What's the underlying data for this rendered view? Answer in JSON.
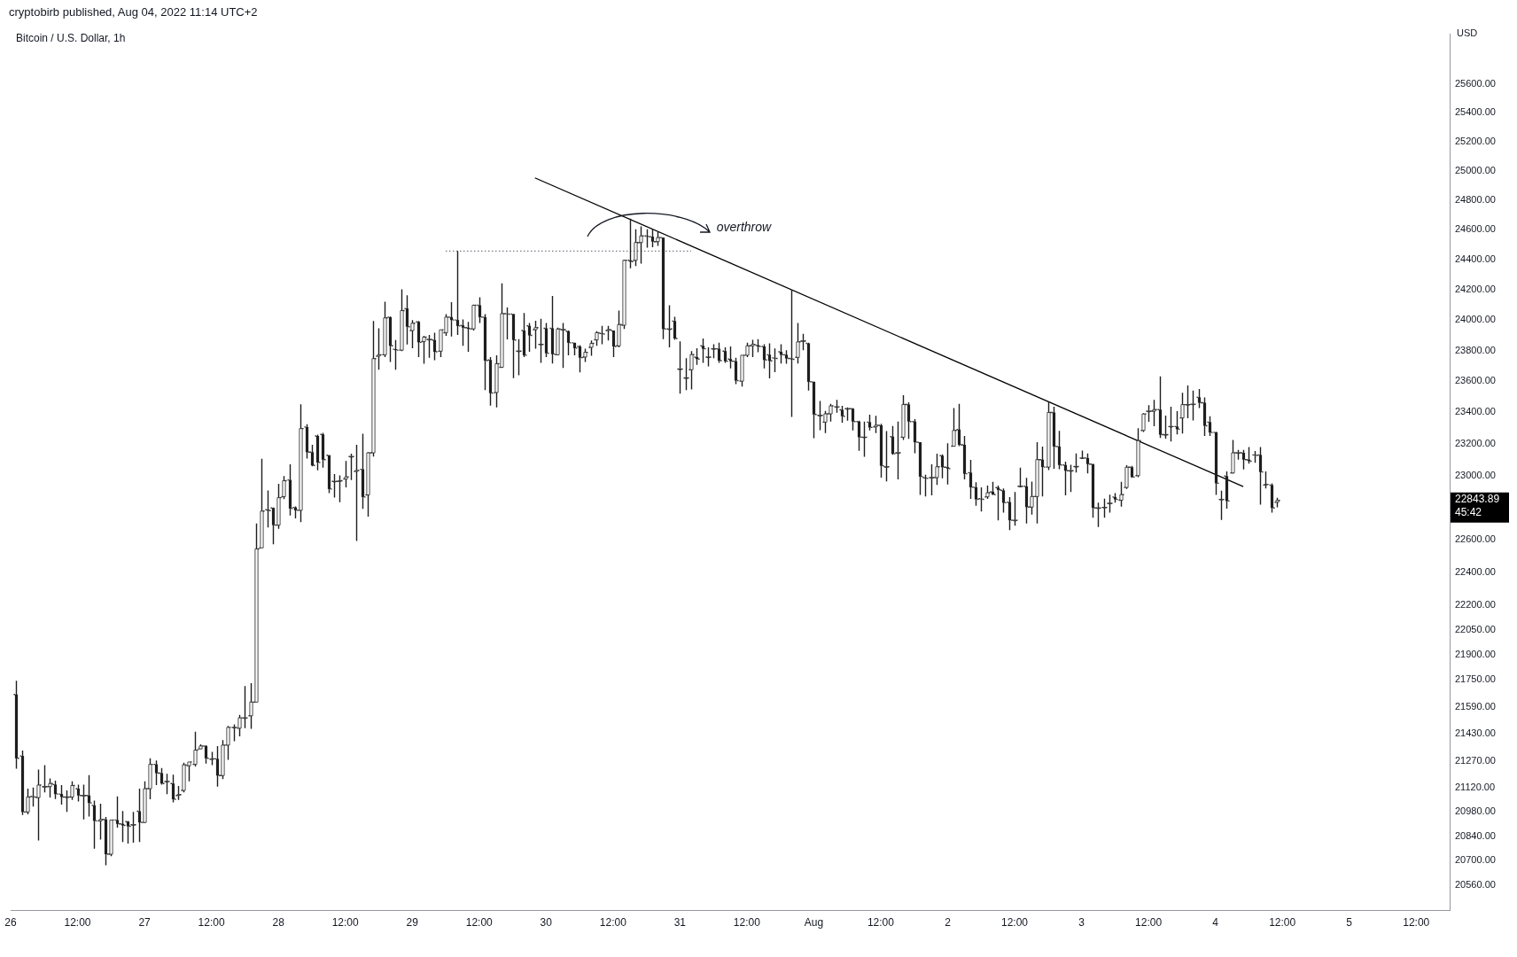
{
  "chart_data": {
    "type": "candlestick",
    "subtitle": "cryptobirb published, Aug 04, 2022 11:14 UTC+2",
    "title": "Bitcoin / U.S. Dollar, 1h",
    "ylabel": "USD",
    "color": "#1e1e1e",
    "log": "y",
    "xlim": [
      "2022-07-26T00:00",
      "2022-08-05T18:00"
    ],
    "xticks": [
      {
        "value": "2022-07-26T00:00",
        "label": "26"
      },
      {
        "value": "2022-07-26T12:00",
        "label": "12:00"
      },
      {
        "value": "2022-07-27T00:00",
        "label": "27"
      },
      {
        "value": "2022-07-27T12:00",
        "label": "12:00"
      },
      {
        "value": "2022-07-28T00:00",
        "label": "28"
      },
      {
        "value": "2022-07-28T12:00",
        "label": "12:00"
      },
      {
        "value": "2022-07-29T00:00",
        "label": "29"
      },
      {
        "value": "2022-07-29T12:00",
        "label": "12:00"
      },
      {
        "value": "2022-07-30T00:00",
        "label": "30"
      },
      {
        "value": "2022-07-30T12:00",
        "label": "12:00"
      },
      {
        "value": "2022-07-31T00:00",
        "label": "31"
      },
      {
        "value": "2022-07-31T12:00",
        "label": "12:00"
      },
      {
        "value": "2022-08-01T00:00",
        "label": "Aug"
      },
      {
        "value": "2022-08-01T12:00",
        "label": "12:00"
      },
      {
        "value": "2022-08-02T00:00",
        "label": "2"
      },
      {
        "value": "2022-08-02T12:00",
        "label": "12:00"
      },
      {
        "value": "2022-08-03T00:00",
        "label": "3"
      },
      {
        "value": "2022-08-03T12:00",
        "label": "12:00"
      },
      {
        "value": "2022-08-04T00:00",
        "label": "4"
      },
      {
        "value": "2022-08-04T12:00",
        "label": "12:00"
      },
      {
        "value": "2022-08-05T00:00",
        "label": "5"
      },
      {
        "value": "2022-08-05T12:00",
        "label": "12:00"
      }
    ],
    "ylim": [
      20420,
      25950
    ],
    "yticks": [
      {
        "value": 20560,
        "label": "20560.00"
      },
      {
        "value": 20700,
        "label": "20700.00"
      },
      {
        "value": 20840,
        "label": "20840.00"
      },
      {
        "value": 20980,
        "label": "20980.00"
      },
      {
        "value": 21120,
        "label": "21120.00"
      },
      {
        "value": 21270,
        "label": "21270.00"
      },
      {
        "value": 21430,
        "label": "21430.00"
      },
      {
        "value": 21590,
        "label": "21590.00"
      },
      {
        "value": 21750,
        "label": "21750.00"
      },
      {
        "value": 21900,
        "label": "21900.00"
      },
      {
        "value": 22050,
        "label": "22050.00"
      },
      {
        "value": 22200,
        "label": "22200.00"
      },
      {
        "value": 22400,
        "label": "22400.00"
      },
      {
        "value": 22600,
        "label": "22600.00"
      },
      {
        "value": 23000,
        "label": "23000.00"
      },
      {
        "value": 23200,
        "label": "23200.00"
      },
      {
        "value": 23400,
        "label": "23400.00"
      },
      {
        "value": 23600,
        "label": "23600.00"
      },
      {
        "value": 23800,
        "label": "23800.00"
      },
      {
        "value": 24000,
        "label": "24000.00"
      },
      {
        "value": 24200,
        "label": "24200.00"
      },
      {
        "value": 24400,
        "label": "24400.00"
      },
      {
        "value": 24600,
        "label": "24600.00"
      },
      {
        "value": 24800,
        "label": "24800.00"
      },
      {
        "value": 25000,
        "label": "25000.00"
      },
      {
        "value": 25200,
        "label": "25200.00"
      },
      {
        "value": 25400,
        "label": "25400.00"
      },
      {
        "value": 25600,
        "label": "25600.00"
      }
    ],
    "x": [
      "2022-07-26T01:00",
      "2022-07-26T02:00",
      "2022-07-26T03:00",
      "2022-07-26T04:00",
      "2022-07-26T05:00",
      "2022-07-26T06:00",
      "2022-07-26T07:00",
      "2022-07-26T08:00",
      "2022-07-26T09:00",
      "2022-07-26T10:00",
      "2022-07-26T11:00",
      "2022-07-26T12:00",
      "2022-07-26T13:00",
      "2022-07-26T14:00",
      "2022-07-26T15:00",
      "2022-07-26T16:00",
      "2022-07-26T17:00",
      "2022-07-26T18:00",
      "2022-07-26T19:00",
      "2022-07-26T20:00",
      "2022-07-26T21:00",
      "2022-07-26T22:00",
      "2022-07-26T23:00",
      "2022-07-27T00:00",
      "2022-07-27T01:00",
      "2022-07-27T02:00",
      "2022-07-27T03:00",
      "2022-07-27T04:00",
      "2022-07-27T05:00",
      "2022-07-27T06:00",
      "2022-07-27T07:00",
      "2022-07-27T08:00",
      "2022-07-27T09:00",
      "2022-07-27T10:00",
      "2022-07-27T11:00",
      "2022-07-27T12:00",
      "2022-07-27T13:00",
      "2022-07-27T14:00",
      "2022-07-27T15:00",
      "2022-07-27T16:00",
      "2022-07-27T17:00",
      "2022-07-27T18:00",
      "2022-07-27T19:00",
      "2022-07-27T20:00",
      "2022-07-27T21:00",
      "2022-07-27T22:00",
      "2022-07-27T23:00",
      "2022-07-28T00:00",
      "2022-07-28T01:00",
      "2022-07-28T02:00",
      "2022-07-28T03:00",
      "2022-07-28T04:00",
      "2022-07-28T05:00",
      "2022-07-28T06:00",
      "2022-07-28T07:00",
      "2022-07-28T08:00",
      "2022-07-28T09:00",
      "2022-07-28T10:00",
      "2022-07-28T11:00",
      "2022-07-28T12:00",
      "2022-07-28T13:00",
      "2022-07-28T14:00",
      "2022-07-28T15:00",
      "2022-07-28T16:00",
      "2022-07-28T17:00",
      "2022-07-28T18:00",
      "2022-07-28T19:00",
      "2022-07-28T20:00",
      "2022-07-28T21:00",
      "2022-07-28T22:00",
      "2022-07-28T23:00",
      "2022-07-29T00:00",
      "2022-07-29T01:00",
      "2022-07-29T02:00",
      "2022-07-29T03:00",
      "2022-07-29T04:00",
      "2022-07-29T05:00",
      "2022-07-29T06:00",
      "2022-07-29T07:00",
      "2022-07-29T08:00",
      "2022-07-29T09:00",
      "2022-07-29T10:00",
      "2022-07-29T11:00",
      "2022-07-29T12:00",
      "2022-07-29T13:00",
      "2022-07-29T14:00",
      "2022-07-29T15:00",
      "2022-07-29T16:00",
      "2022-07-29T17:00",
      "2022-07-29T18:00",
      "2022-07-29T19:00",
      "2022-07-29T20:00",
      "2022-07-29T21:00",
      "2022-07-29T22:00",
      "2022-07-29T23:00",
      "2022-07-30T00:00",
      "2022-07-30T01:00",
      "2022-07-30T02:00",
      "2022-07-30T03:00",
      "2022-07-30T04:00",
      "2022-07-30T05:00",
      "2022-07-30T06:00",
      "2022-07-30T07:00",
      "2022-07-30T08:00",
      "2022-07-30T09:00",
      "2022-07-30T10:00",
      "2022-07-30T11:00",
      "2022-07-30T12:00",
      "2022-07-30T13:00",
      "2022-07-30T14:00",
      "2022-07-30T15:00",
      "2022-07-30T16:00",
      "2022-07-30T17:00",
      "2022-07-30T18:00",
      "2022-07-30T19:00",
      "2022-07-30T20:00",
      "2022-07-30T21:00",
      "2022-07-30T22:00",
      "2022-07-30T23:00",
      "2022-07-31T00:00",
      "2022-07-31T01:00",
      "2022-07-31T02:00",
      "2022-07-31T03:00",
      "2022-07-31T04:00",
      "2022-07-31T05:00",
      "2022-07-31T06:00",
      "2022-07-31T07:00",
      "2022-07-31T08:00",
      "2022-07-31T09:00",
      "2022-07-31T10:00",
      "2022-07-31T11:00",
      "2022-07-31T12:00",
      "2022-07-31T13:00",
      "2022-07-31T14:00",
      "2022-07-31T15:00",
      "2022-07-31T16:00",
      "2022-07-31T17:00",
      "2022-07-31T18:00",
      "2022-07-31T19:00",
      "2022-07-31T20:00",
      "2022-07-31T21:00",
      "2022-07-31T22:00",
      "2022-07-31T23:00",
      "2022-08-01T00:00",
      "2022-08-01T01:00",
      "2022-08-01T02:00",
      "2022-08-01T03:00",
      "2022-08-01T04:00",
      "2022-08-01T05:00",
      "2022-08-01T06:00",
      "2022-08-01T07:00",
      "2022-08-01T08:00",
      "2022-08-01T09:00",
      "2022-08-01T10:00",
      "2022-08-01T11:00",
      "2022-08-01T12:00",
      "2022-08-01T13:00",
      "2022-08-01T14:00",
      "2022-08-01T15:00",
      "2022-08-01T16:00",
      "2022-08-01T17:00",
      "2022-08-01T18:00",
      "2022-08-01T19:00",
      "2022-08-01T20:00",
      "2022-08-01T21:00",
      "2022-08-01T22:00",
      "2022-08-01T23:00",
      "2022-08-02T00:00",
      "2022-08-02T01:00",
      "2022-08-02T02:00",
      "2022-08-02T03:00",
      "2022-08-02T04:00",
      "2022-08-02T05:00",
      "2022-08-02T06:00",
      "2022-08-02T07:00",
      "2022-08-02T08:00",
      "2022-08-02T09:00",
      "2022-08-02T10:00",
      "2022-08-02T11:00",
      "2022-08-02T12:00",
      "2022-08-02T13:00",
      "2022-08-02T14:00",
      "2022-08-02T15:00",
      "2022-08-02T16:00",
      "2022-08-02T17:00",
      "2022-08-02T18:00",
      "2022-08-02T19:00",
      "2022-08-02T20:00",
      "2022-08-02T21:00",
      "2022-08-02T22:00",
      "2022-08-02T23:00",
      "2022-08-03T00:00",
      "2022-08-03T01:00",
      "2022-08-03T02:00",
      "2022-08-03T03:00",
      "2022-08-03T04:00",
      "2022-08-03T05:00",
      "2022-08-03T06:00",
      "2022-08-03T07:00",
      "2022-08-03T08:00",
      "2022-08-03T09:00",
      "2022-08-03T10:00",
      "2022-08-03T11:00",
      "2022-08-03T12:00",
      "2022-08-03T13:00",
      "2022-08-03T14:00",
      "2022-08-03T15:00",
      "2022-08-03T16:00",
      "2022-08-03T17:00",
      "2022-08-03T18:00",
      "2022-08-03T19:00",
      "2022-08-03T20:00",
      "2022-08-03T21:00",
      "2022-08-03T22:00",
      "2022-08-03T23:00",
      "2022-08-04T00:00",
      "2022-08-04T01:00",
      "2022-08-04T02:00",
      "2022-08-04T03:00",
      "2022-08-04T04:00",
      "2022-08-04T05:00",
      "2022-08-04T06:00",
      "2022-08-04T07:00",
      "2022-08-04T08:00",
      "2022-08-04T09:00",
      "2022-08-04T10:00",
      "2022-08-04T11:00"
    ],
    "ohlc": [
      [
        21663,
        21745,
        21228,
        21288
      ],
      [
        21302,
        21334,
        20961,
        20978
      ],
      [
        20978,
        21112,
        20964,
        21064
      ],
      [
        21068,
        21119,
        21009,
        21064
      ],
      [
        21061,
        21222,
        20815,
        21133
      ],
      [
        21124,
        21248,
        21090,
        21124
      ],
      [
        21124,
        21171,
        21061,
        21142
      ],
      [
        21136,
        21159,
        21052,
        21081
      ],
      [
        21081,
        21133,
        21021,
        21064
      ],
      [
        21064,
        21102,
        20978,
        21064
      ],
      [
        21064,
        21154,
        21047,
        21130
      ],
      [
        21112,
        21136,
        21038,
        21073
      ],
      [
        21073,
        21136,
        20935,
        21073
      ],
      [
        21073,
        21190,
        20952,
        21030
      ],
      [
        21016,
        21044,
        20768,
        20927
      ],
      [
        20927,
        21026,
        20820,
        20935
      ],
      [
        20935,
        20949,
        20674,
        20737
      ],
      [
        20737,
        20932,
        20726,
        20932
      ],
      [
        20932,
        21068,
        20889,
        20910
      ],
      [
        20910,
        20984,
        20806,
        20901
      ],
      [
        20923,
        20927,
        20798,
        20896
      ],
      [
        20905,
        20978,
        20803,
        20905
      ],
      [
        20982,
        21112,
        20806,
        20918
      ],
      [
        20918,
        21155,
        20915,
        21112
      ],
      [
        21112,
        21288,
        21051,
        21253
      ],
      [
        21253,
        21276,
        21133,
        21202
      ],
      [
        21202,
        21231,
        21136,
        21142
      ],
      [
        21154,
        21198,
        21081,
        21154
      ],
      [
        21142,
        21193,
        21033,
        21051
      ],
      [
        21073,
        21128,
        21047,
        21078
      ],
      [
        21102,
        21262,
        21090,
        21250
      ],
      [
        21245,
        21267,
        21155,
        21267
      ],
      [
        21253,
        21443,
        21241,
        21336
      ],
      [
        21343,
        21370,
        21343,
        21360
      ],
      [
        21360,
        21365,
        21257,
        21288
      ],
      [
        21283,
        21326,
        21248,
        21285
      ],
      [
        21285,
        21360,
        21124,
        21188
      ],
      [
        21188,
        21394,
        21167,
        21365
      ],
      [
        21365,
        21477,
        21279,
        21469
      ],
      [
        21469,
        21486,
        21388,
        21469
      ],
      [
        21464,
        21542,
        21417,
        21525
      ],
      [
        21525,
        21713,
        21464,
        21525
      ],
      [
        21537,
        21730,
        21460,
        21618
      ],
      [
        21618,
        22700,
        21618,
        22543
      ],
      [
        22549,
        23106,
        22549,
        22777
      ],
      [
        22786,
        22906,
        22675,
        22780
      ],
      [
        22797,
        22800,
        22571,
        22690
      ],
      [
        22690,
        22948,
        22667,
        22861
      ],
      [
        22867,
        22996,
        22852,
        22967
      ],
      [
        22972,
        23070,
        22750,
        22793
      ],
      [
        22800,
        22806,
        22732,
        22782
      ],
      [
        22782,
        23452,
        22708,
        23297
      ],
      [
        23307,
        23325,
        23107,
        23147
      ],
      [
        23147,
        23194,
        23058,
        23063
      ],
      [
        23250,
        23259,
        23032,
        23082
      ],
      [
        23260,
        23269,
        23049,
        23100
      ],
      [
        23128,
        23128,
        22890,
        22915
      ],
      [
        22963,
        23009,
        22861,
        22963
      ],
      [
        22963,
        23000,
        22833,
        22967
      ],
      [
        22978,
        23091,
        22926,
        22991
      ],
      [
        23119,
        23137,
        22972,
        23119
      ],
      [
        23026,
        23194,
        22592,
        23032
      ],
      [
        23039,
        23264,
        22791,
        22865
      ],
      [
        22878,
        23147,
        22743,
        23143
      ],
      [
        23143,
        23993,
        23119,
        23747
      ],
      [
        23763,
        23945,
        23675,
        23772
      ],
      [
        23772,
        24120,
        23757,
        24013
      ],
      [
        24018,
        24022,
        23725,
        23830
      ],
      [
        23808,
        23868,
        23675,
        23802
      ],
      [
        23802,
        24201,
        23796,
        24061
      ],
      [
        24075,
        24162,
        23839,
        23955
      ],
      [
        23930,
        23999,
        23814,
        23978
      ],
      [
        23987,
        23993,
        23757,
        23853
      ],
      [
        23858,
        23896,
        23714,
        23887
      ],
      [
        23872,
        23901,
        23753,
        23872
      ],
      [
        23868,
        23915,
        23737,
        23791
      ],
      [
        23795,
        23935,
        23757,
        23935
      ],
      [
        23916,
        24038,
        23896,
        24018
      ],
      [
        24018,
        24116,
        23891,
        23999
      ],
      [
        23999,
        24456,
        23901,
        23960
      ],
      [
        23964,
        24003,
        23830,
        23949
      ],
      [
        23949,
        23987,
        23791,
        23941
      ],
      [
        23941,
        24100,
        23930,
        24096
      ],
      [
        24096,
        24149,
        23979,
        24018
      ],
      [
        24018,
        24038,
        23543,
        23734
      ],
      [
        23738,
        23757,
        23444,
        23524
      ],
      [
        23528,
        23768,
        23433,
        23714
      ],
      [
        23691,
        24241,
        23686,
        24041
      ],
      [
        24041,
        24081,
        23872,
        24038
      ],
      [
        24038,
        24038,
        23620,
        23868
      ],
      [
        23796,
        23873,
        23639,
        23796
      ],
      [
        23930,
        24045,
        23757,
        23769
      ],
      [
        23961,
        23980,
        23792,
        23898
      ],
      [
        23936,
        23994,
        23811,
        23949
      ],
      [
        23840,
        24007,
        23719,
        23840
      ],
      [
        23945,
        23980,
        23757,
        23782
      ],
      [
        23945,
        24158,
        23715,
        23776
      ],
      [
        23772,
        23949,
        23769,
        23940
      ],
      [
        23936,
        23980,
        23687,
        23936
      ],
      [
        23926,
        23930,
        23769,
        23850
      ],
      [
        23850,
        23850,
        23769,
        23815
      ],
      [
        23826,
        23834,
        23658,
        23753
      ],
      [
        23757,
        23811,
        23725,
        23788
      ],
      [
        23820,
        23865,
        23765,
        23846
      ],
      [
        23869,
        23926,
        23830,
        23916
      ],
      [
        23911,
        23961,
        23840,
        23907
      ],
      [
        23930,
        23961,
        23865,
        23936
      ],
      [
        23930,
        23930,
        23757,
        23826
      ],
      [
        23830,
        24061,
        23820,
        23969
      ],
      [
        23965,
        24398,
        23940,
        24394
      ],
      [
        24394,
        24674,
        24341,
        24385
      ],
      [
        24394,
        24602,
        24356,
        24513
      ],
      [
        24513,
        24621,
        24372,
        24557
      ],
      [
        24557,
        24602,
        24479,
        24552
      ],
      [
        24552,
        24602,
        24482,
        24519
      ],
      [
        24519,
        24583,
        24491,
        24546
      ],
      [
        24546,
        24546,
        23873,
        23940
      ],
      [
        23940,
        24096,
        23820,
        23940
      ],
      [
        23992,
        24020,
        23869,
        23878
      ],
      [
        23679,
        23859,
        23520,
        23679
      ],
      [
        23622,
        23749,
        23543,
        23622
      ],
      [
        23675,
        23796,
        23547,
        23773
      ],
      [
        23757,
        23815,
        23706,
        23744
      ],
      [
        23830,
        23878,
        23719,
        23811
      ],
      [
        23757,
        23820,
        23696,
        23757
      ],
      [
        23811,
        23840,
        23749,
        23811
      ],
      [
        23811,
        23850,
        23719,
        23734
      ],
      [
        23796,
        23820,
        23719,
        23730
      ],
      [
        23744,
        23826,
        23683,
        23730
      ],
      [
        23730,
        23753,
        23582,
        23605
      ],
      [
        23601,
        23769,
        23566,
        23769
      ],
      [
        23769,
        23850,
        23757,
        23830
      ],
      [
        23830,
        23869,
        23757,
        23840
      ],
      [
        23834,
        23873,
        23788,
        23826
      ],
      [
        23826,
        23840,
        23683,
        23738
      ],
      [
        23772,
        23846,
        23619,
        23732
      ],
      [
        23752,
        23813,
        23659,
        23748
      ],
      [
        23791,
        23841,
        23715,
        23772
      ],
      [
        23772,
        23801,
        23713,
        23748
      ],
      [
        23748,
        24197,
        23372,
        23742
      ],
      [
        23755,
        23980,
        23715,
        23856
      ],
      [
        23862,
        23909,
        23801,
        23862
      ],
      [
        23846,
        23850,
        23540,
        23597
      ],
      [
        23597,
        23597,
        23236,
        23387
      ],
      [
        23381,
        23474,
        23287,
        23381
      ],
      [
        23338,
        23410,
        23268,
        23391
      ],
      [
        23391,
        23455,
        23342,
        23442
      ],
      [
        23436,
        23480,
        23398,
        23436
      ],
      [
        23417,
        23442,
        23334,
        23376
      ],
      [
        23424,
        23433,
        23347,
        23424
      ],
      [
        23424,
        23428,
        23285,
        23342
      ],
      [
        23342,
        23347,
        23156,
        23242
      ],
      [
        23242,
        23342,
        23118,
        23242
      ],
      [
        23338,
        23385,
        23285,
        23304
      ],
      [
        23308,
        23379,
        23268,
        23318
      ],
      [
        23318,
        23327,
        22987,
        23061
      ],
      [
        23055,
        23281,
        22963,
        23055
      ],
      [
        23246,
        23314,
        23130,
        23137
      ],
      [
        23143,
        23342,
        22976,
        23143
      ],
      [
        23242,
        23510,
        23225,
        23451
      ],
      [
        23451,
        23465,
        23231,
        23342
      ],
      [
        23342,
        23357,
        23141,
        23210
      ],
      [
        23210,
        23210,
        22878,
        22993
      ],
      [
        22987,
        23005,
        22869,
        22982
      ],
      [
        22987,
        23070,
        22876,
        22987
      ],
      [
        22987,
        23137,
        22941,
        23055
      ],
      [
        23125,
        23133,
        22983,
        23052
      ],
      [
        23052,
        23203,
        22944,
        23043
      ],
      [
        23185,
        23428,
        23185,
        23285
      ],
      [
        23291,
        23455,
        23185,
        23194
      ],
      [
        23194,
        23250,
        22976,
        23011
      ],
      [
        23018,
        23098,
        22853,
        22926
      ],
      [
        22926,
        22957,
        22811,
        22851
      ],
      [
        22855,
        22926,
        22775,
        22851
      ],
      [
        22866,
        22937,
        22853,
        22892
      ],
      [
        22898,
        22960,
        22878,
        22880
      ],
      [
        22924,
        22937,
        22720,
        22910
      ],
      [
        22906,
        22919,
        22768,
        22829
      ],
      [
        22833,
        22864,
        22659,
        22720
      ],
      [
        22720,
        22896,
        22686,
        22720
      ],
      [
        22932,
        23049,
        22926,
        22932
      ],
      [
        22932,
        22985,
        22700,
        22802
      ],
      [
        22802,
        22962,
        22755,
        22868
      ],
      [
        22868,
        23210,
        22700,
        23100
      ],
      [
        23100,
        23182,
        22868,
        23053
      ],
      [
        23053,
        23468,
        23034,
        23400
      ],
      [
        23400,
        23436,
        23043,
        23183
      ],
      [
        23183,
        23283,
        23040,
        23066
      ],
      [
        23066,
        23087,
        22875,
        23030
      ],
      [
        23030,
        23068,
        22897,
        23030
      ],
      [
        23056,
        23139,
        23019,
        23056
      ],
      [
        23110,
        23157,
        23105,
        23110
      ],
      [
        23110,
        23139,
        23013,
        23072
      ],
      [
        23072,
        23072,
        22736,
        22797
      ],
      [
        22797,
        22830,
        22678,
        22797
      ],
      [
        22800,
        22855,
        22736,
        22800
      ],
      [
        22826,
        22880,
        22768,
        22826
      ],
      [
        22865,
        22890,
        22830,
        22850
      ],
      [
        22845,
        22960,
        22805,
        22880
      ],
      [
        22925,
        23065,
        22916,
        23052
      ],
      [
        23052,
        23060,
        22985,
        22990
      ],
      [
        22999,
        23300,
        22990,
        23220
      ],
      [
        23285,
        23396,
        23275,
        23390
      ],
      [
        23408,
        23446,
        23340,
        23408
      ],
      [
        23408,
        23480,
        23312,
        23418
      ],
      [
        23418,
        23632,
        23237,
        23258
      ],
      [
        23258,
        23380,
        23233,
        23258
      ],
      [
        23310,
        23436,
        23215,
        23310
      ],
      [
        23310,
        23408,
        23260,
        23293
      ],
      [
        23365,
        23526,
        23266,
        23450
      ],
      [
        23450,
        23573,
        23363,
        23450
      ],
      [
        23453,
        23540,
        23349,
        23453
      ],
      [
        23497,
        23550,
        23428,
        23462
      ],
      [
        23462,
        23497,
        23250,
        23315
      ],
      [
        23338,
        23375,
        23250,
        23272
      ],
      [
        23273,
        23277,
        22878,
        22951
      ],
      [
        22850,
        22905,
        22722,
        22850
      ],
      [
        22996,
        23026,
        22792,
        22840
      ],
      [
        23016,
        23225,
        23012,
        23143
      ],
      [
        23143,
        23162,
        23100,
        23143
      ],
      [
        23143,
        23162,
        23038,
        23100
      ],
      [
        23100,
        23180,
        23075,
        23090
      ],
      [
        23130,
        23155,
        23080,
        23126
      ],
      [
        23130,
        23180,
        22818,
        23022
      ],
      [
        22940,
        23026,
        22918,
        22944
      ],
      [
        22940,
        22951,
        22768,
        22797
      ],
      [
        22832,
        22860,
        22801,
        22843.89
      ]
    ],
    "series": [
      {
        "type": "line",
        "x": [
          "2022-07-29T22:00",
          "2022-08-04T05:00"
        ],
        "values": [
          24950,
          22930
        ],
        "color": "#000000",
        "line_style": "solid"
      },
      {
        "type": "line",
        "x": [
          "2022-07-29T06:00",
          "2022-07-31T02:00"
        ],
        "values": [
          24456,
          24456
        ],
        "color": "#787b86",
        "line_style": "dotted"
      }
    ],
    "marker": "none",
    "annotations": [
      "overthrow",
      "22843.89",
      "45:42"
    ]
  }
}
